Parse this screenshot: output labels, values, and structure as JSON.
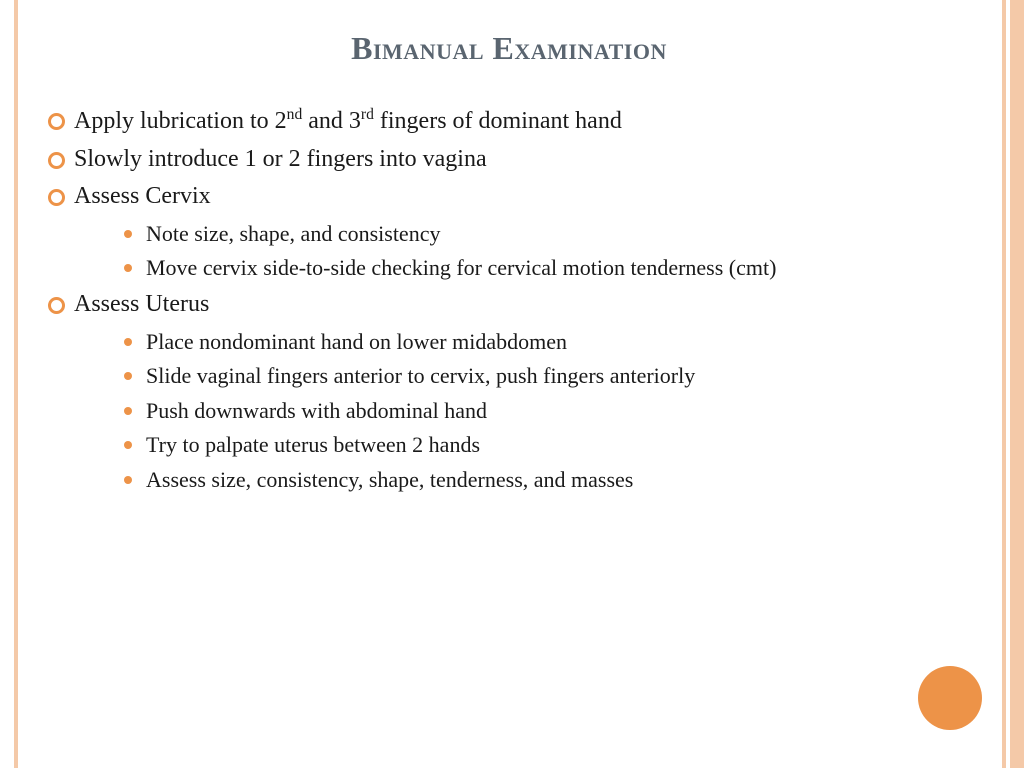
{
  "theme": {
    "accent_color": "#ed9348",
    "border_color": "#f4c9a8",
    "title_color": "#5a6570",
    "text_color": "#1a1a1a",
    "background_color": "#ffffff",
    "title_fontsize": 32,
    "body_fontsize": 24,
    "sub_fontsize": 22,
    "font_family": "Georgia, serif"
  },
  "slide": {
    "title": "Bimanual Examination",
    "bullets": [
      {
        "html": "Apply lubrication to 2<sup>nd</sup> and 3<sup>rd</sup> fingers of dominant hand"
      },
      {
        "html": "Slowly introduce 1 or 2 fingers into vagina"
      },
      {
        "html": "Assess Cervix",
        "sub": [
          "Note size, shape, and consistency",
          "Move cervix side-to-side checking for cervical motion tenderness (cmt)"
        ]
      },
      {
        "html": "Assess Uterus",
        "sub": [
          "Place nondominant hand on lower midabdomen",
          "Slide vaginal fingers anterior to cervix, push fingers anteriorly",
          "Push downwards with abdominal hand",
          "Try to palpate uterus between 2 hands",
          "Assess size, consistency, shape, tenderness, and masses"
        ]
      }
    ]
  }
}
